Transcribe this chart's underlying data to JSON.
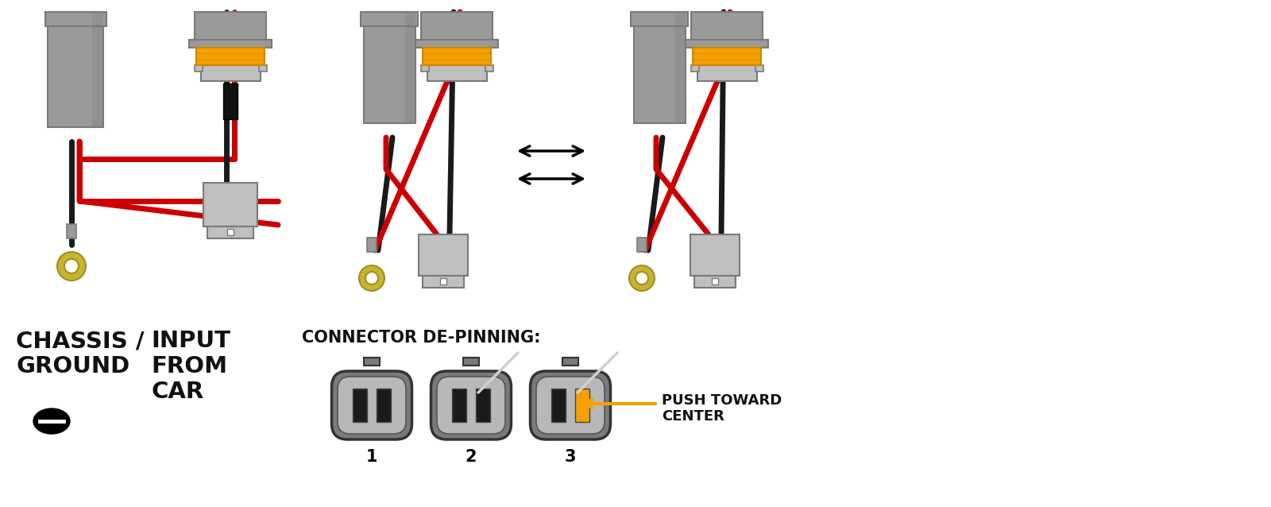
{
  "bg_color": "#ffffff",
  "gray_dark": "#7a7a7a",
  "gray_mid": "#9a9a9a",
  "gray_light": "#c0c0c0",
  "gray_lighter": "#d0d0d0",
  "orange_color": "#f5a000",
  "red_wire": "#cc0000",
  "black_wire": "#1a1a1a",
  "gold_color": "#c8b432",
  "gold_dark": "#a09020",
  "text_color": "#111111",
  "label_chassis_line1": "CHASSIS /",
  "label_chassis_line2": "GROUND",
  "label_input_line1": "INPUT",
  "label_input_line2": "FROM",
  "label_input_line3": "CAR",
  "label_depin": "CONNECTOR DE-PINNING:",
  "label_push_line1": "PUSH TOWARD",
  "label_push_line2": "CENTER",
  "wire_lw": 5,
  "diagram_scale": 1.0
}
